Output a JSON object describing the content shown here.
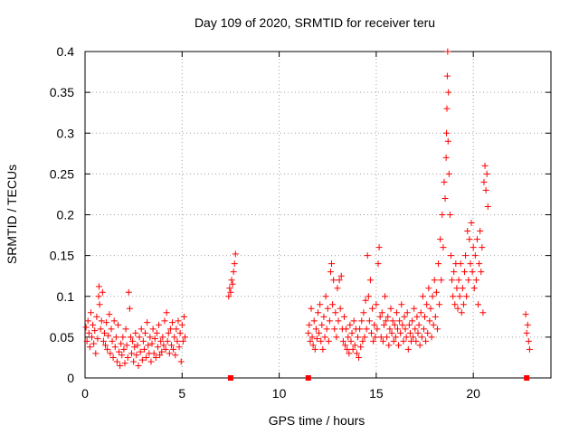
{
  "chart_data": {
    "type": "scatter",
    "title": "Day 109 of 2020, SRMTID for receiver teru",
    "xlabel": "GPS time / hours",
    "ylabel": "SRMTID / TECUs",
    "xlim": [
      0,
      24
    ],
    "ylim": [
      0,
      0.4
    ],
    "xticks": [
      0,
      5,
      10,
      15,
      20
    ],
    "xtick_labels": [
      "0",
      "5",
      "10",
      "15",
      "20"
    ],
    "yticks": [
      0,
      0.05,
      0.1,
      0.15,
      0.2,
      0.25,
      0.3,
      0.35,
      0.4
    ],
    "ytick_labels": [
      "0",
      "0.05",
      "0.1",
      "0.15",
      "0.2",
      "0.25",
      "0.3",
      "0.35",
      "0.4"
    ],
    "grid": true,
    "marker": "+",
    "color": "#ff0000",
    "series": [
      {
        "name": "SRMTID",
        "points": [
          [
            0.05,
            0.062
          ],
          [
            0.1,
            0.045
          ],
          [
            0.15,
            0.07
          ],
          [
            0.2,
            0.055
          ],
          [
            0.25,
            0.038
          ],
          [
            0.3,
            0.08
          ],
          [
            0.35,
            0.05
          ],
          [
            0.4,
            0.065
          ],
          [
            0.45,
            0.042
          ],
          [
            0.5,
            0.058
          ],
          [
            0.55,
            0.03
          ],
          [
            0.6,
            0.075
          ],
          [
            0.65,
            0.048
          ],
          [
            0.7,
            0.1
          ],
          [
            0.72,
            0.112
          ],
          [
            0.75,
            0.09
          ],
          [
            0.8,
            0.06
          ],
          [
            0.85,
            0.07
          ],
          [
            0.9,
            0.105
          ],
          [
            0.95,
            0.045
          ],
          [
            1.0,
            0.055
          ],
          [
            1.05,
            0.04
          ],
          [
            1.1,
            0.068
          ],
          [
            1.15,
            0.035
          ],
          [
            1.2,
            0.052
          ],
          [
            1.25,
            0.078
          ],
          [
            1.3,
            0.03
          ],
          [
            1.35,
            0.06
          ],
          [
            1.4,
            0.045
          ],
          [
            1.45,
            0.025
          ],
          [
            1.5,
            0.07
          ],
          [
            1.55,
            0.038
          ],
          [
            1.6,
            0.05
          ],
          [
            1.65,
            0.02
          ],
          [
            1.7,
            0.065
          ],
          [
            1.75,
            0.032
          ],
          [
            1.8,
            0.015
          ],
          [
            1.85,
            0.042
          ],
          [
            1.9,
            0.028
          ],
          [
            1.95,
            0.05
          ],
          [
            2.0,
            0.035
          ],
          [
            2.05,
            0.018
          ],
          [
            2.1,
            0.06
          ],
          [
            2.15,
            0.04
          ],
          [
            2.2,
            0.025
          ],
          [
            2.25,
            0.105
          ],
          [
            2.3,
            0.085
          ],
          [
            2.35,
            0.05
          ],
          [
            2.4,
            0.03
          ],
          [
            2.45,
            0.045
          ],
          [
            2.5,
            0.02
          ],
          [
            2.55,
            0.038
          ],
          [
            2.6,
            0.055
          ],
          [
            2.65,
            0.028
          ],
          [
            2.7,
            0.04
          ],
          [
            2.75,
            0.015
          ],
          [
            2.8,
            0.05
          ],
          [
            2.85,
            0.032
          ],
          [
            2.9,
            0.06
          ],
          [
            2.95,
            0.022
          ],
          [
            3.0,
            0.045
          ],
          [
            3.05,
            0.035
          ],
          [
            3.1,
            0.055
          ],
          [
            3.15,
            0.025
          ],
          [
            3.2,
            0.068
          ],
          [
            3.25,
            0.04
          ],
          [
            3.3,
            0.03
          ],
          [
            3.35,
            0.05
          ],
          [
            3.4,
            0.02
          ],
          [
            3.45,
            0.042
          ],
          [
            3.5,
            0.06
          ],
          [
            3.55,
            0.03
          ],
          [
            3.6,
            0.048
          ],
          [
            3.65,
            0.025
          ],
          [
            3.7,
            0.055
          ],
          [
            3.75,
            0.038
          ],
          [
            3.8,
            0.065
          ],
          [
            3.85,
            0.028
          ],
          [
            3.9,
            0.045
          ],
          [
            3.95,
            0.032
          ],
          [
            4.0,
            0.05
          ],
          [
            4.05,
            0.04
          ],
          [
            4.1,
            0.07
          ],
          [
            4.15,
            0.035
          ],
          [
            4.2,
            0.08
          ],
          [
            4.25,
            0.045
          ],
          [
            4.3,
            0.055
          ],
          [
            4.35,
            0.03
          ],
          [
            4.4,
            0.06
          ],
          [
            4.45,
            0.04
          ],
          [
            4.5,
            0.068
          ],
          [
            4.55,
            0.035
          ],
          [
            4.6,
            0.05
          ],
          [
            4.65,
            0.028
          ],
          [
            4.7,
            0.06
          ],
          [
            4.75,
            0.045
          ],
          [
            4.8,
            0.07
          ],
          [
            4.85,
            0.038
          ],
          [
            4.9,
            0.055
          ],
          [
            4.95,
            0.02
          ],
          [
            5.0,
            0.065
          ],
          [
            5.05,
            0.045
          ],
          [
            5.1,
            0.075
          ],
          [
            5.15,
            0.05
          ],
          [
            7.4,
            0.1
          ],
          [
            7.45,
            0.11
          ],
          [
            7.5,
            0.105
          ],
          [
            7.55,
            0.12
          ],
          [
            7.6,
            0.115
          ],
          [
            7.65,
            0.13
          ],
          [
            7.7,
            0.14
          ],
          [
            7.75,
            0.152
          ],
          [
            11.5,
            0.055
          ],
          [
            11.55,
            0.065
          ],
          [
            11.6,
            0.045
          ],
          [
            11.65,
            0.085
          ],
          [
            11.7,
            0.05
          ],
          [
            11.75,
            0.04
          ],
          [
            11.8,
            0.07
          ],
          [
            11.85,
            0.035
          ],
          [
            11.9,
            0.06
          ],
          [
            11.95,
            0.048
          ],
          [
            12.0,
            0.08
          ],
          [
            12.05,
            0.055
          ],
          [
            12.1,
            0.09
          ],
          [
            12.15,
            0.045
          ],
          [
            12.2,
            0.065
          ],
          [
            12.25,
            0.035
          ],
          [
            12.3,
            0.075
          ],
          [
            12.35,
            0.05
          ],
          [
            12.4,
            0.1
          ],
          [
            12.45,
            0.06
          ],
          [
            12.5,
            0.085
          ],
          [
            12.55,
            0.045
          ],
          [
            12.6,
            0.07
          ],
          [
            12.65,
            0.13
          ],
          [
            12.7,
            0.14
          ],
          [
            12.75,
            0.09
          ],
          [
            12.8,
            0.12
          ],
          [
            12.85,
            0.06
          ],
          [
            12.9,
            0.08
          ],
          [
            12.95,
            0.05
          ],
          [
            13.0,
            0.11
          ],
          [
            13.05,
            0.07
          ],
          [
            13.1,
            0.12
          ],
          [
            13.15,
            0.085
          ],
          [
            13.2,
            0.125
          ],
          [
            13.25,
            0.06
          ],
          [
            13.3,
            0.045
          ],
          [
            13.35,
            0.075
          ],
          [
            13.4,
            0.04
          ],
          [
            13.45,
            0.06
          ],
          [
            13.5,
            0.035
          ],
          [
            13.55,
            0.05
          ],
          [
            13.6,
            0.03
          ],
          [
            13.65,
            0.065
          ],
          [
            13.7,
            0.045
          ],
          [
            13.75,
            0.055
          ],
          [
            13.8,
            0.035
          ],
          [
            13.85,
            0.07
          ],
          [
            13.9,
            0.04
          ],
          [
            13.95,
            0.06
          ],
          [
            14.0,
            0.03
          ],
          [
            14.05,
            0.05
          ],
          [
            14.1,
            0.025
          ],
          [
            14.15,
            0.06
          ],
          [
            14.2,
            0.038
          ],
          [
            14.25,
            0.07
          ],
          [
            14.3,
            0.045
          ],
          [
            14.35,
            0.08
          ],
          [
            14.4,
            0.05
          ],
          [
            14.45,
            0.095
          ],
          [
            14.5,
            0.06
          ],
          [
            14.55,
            0.15
          ],
          [
            14.6,
            0.1
          ],
          [
            14.65,
            0.07
          ],
          [
            14.7,
            0.12
          ],
          [
            14.75,
            0.055
          ],
          [
            14.8,
            0.085
          ],
          [
            14.85,
            0.045
          ],
          [
            14.9,
            0.065
          ],
          [
            14.95,
            0.05
          ],
          [
            15.0,
            0.09
          ],
          [
            15.05,
            0.06
          ],
          [
            15.1,
            0.14
          ],
          [
            15.15,
            0.16
          ],
          [
            15.2,
            0.075
          ],
          [
            15.25,
            0.05
          ],
          [
            15.3,
            0.08
          ],
          [
            15.35,
            0.045
          ],
          [
            15.4,
            0.065
          ],
          [
            15.45,
            0.1
          ],
          [
            15.5,
            0.07
          ],
          [
            15.55,
            0.05
          ],
          [
            15.6,
            0.075
          ],
          [
            15.65,
            0.04
          ],
          [
            15.7,
            0.06
          ],
          [
            15.75,
            0.085
          ],
          [
            15.8,
            0.055
          ],
          [
            15.85,
            0.07
          ],
          [
            15.9,
            0.045
          ],
          [
            15.95,
            0.065
          ],
          [
            16.0,
            0.05
          ],
          [
            16.05,
            0.08
          ],
          [
            16.1,
            0.06
          ],
          [
            16.15,
            0.04
          ],
          [
            16.2,
            0.07
          ],
          [
            16.25,
            0.055
          ],
          [
            16.3,
            0.09
          ],
          [
            16.35,
            0.065
          ],
          [
            16.4,
            0.045
          ],
          [
            16.45,
            0.075
          ],
          [
            16.5,
            0.06
          ],
          [
            16.55,
            0.05
          ],
          [
            16.6,
            0.08
          ],
          [
            16.65,
            0.035
          ],
          [
            16.7,
            0.065
          ],
          [
            16.75,
            0.055
          ],
          [
            16.8,
            0.045
          ],
          [
            16.85,
            0.07
          ],
          [
            16.9,
            0.05
          ],
          [
            16.95,
            0.085
          ],
          [
            17.0,
            0.06
          ],
          [
            17.05,
            0.045
          ],
          [
            17.1,
            0.075
          ],
          [
            17.15,
            0.055
          ],
          [
            17.2,
            0.065
          ],
          [
            17.25,
            0.04
          ],
          [
            17.3,
            0.08
          ],
          [
            17.35,
            0.05
          ],
          [
            17.4,
            0.1
          ],
          [
            17.45,
            0.06
          ],
          [
            17.5,
            0.075
          ],
          [
            17.55,
            0.045
          ],
          [
            17.6,
            0.09
          ],
          [
            17.65,
            0.055
          ],
          [
            17.7,
            0.11
          ],
          [
            17.75,
            0.07
          ],
          [
            17.8,
            0.085
          ],
          [
            17.85,
            0.05
          ],
          [
            17.9,
            0.1
          ],
          [
            17.95,
            0.065
          ],
          [
            18.0,
            0.12
          ],
          [
            18.05,
            0.075
          ],
          [
            18.1,
            0.105
          ],
          [
            18.15,
            0.06
          ],
          [
            18.2,
            0.14
          ],
          [
            18.25,
            0.09
          ],
          [
            18.3,
            0.17
          ],
          [
            18.35,
            0.12
          ],
          [
            18.4,
            0.2
          ],
          [
            18.45,
            0.16
          ],
          [
            18.5,
            0.24
          ],
          [
            18.55,
            0.22
          ],
          [
            18.6,
            0.27
          ],
          [
            18.62,
            0.3
          ],
          [
            18.64,
            0.33
          ],
          [
            18.66,
            0.37
          ],
          [
            18.68,
            0.4
          ],
          [
            18.7,
            0.29
          ],
          [
            18.72,
            0.35
          ],
          [
            18.75,
            0.25
          ],
          [
            18.8,
            0.2
          ],
          [
            18.85,
            0.15
          ],
          [
            18.9,
            0.12
          ],
          [
            18.95,
            0.1
          ],
          [
            19.0,
            0.13
          ],
          [
            19.05,
            0.09
          ],
          [
            19.1,
            0.14
          ],
          [
            19.15,
            0.11
          ],
          [
            19.2,
            0.085
          ],
          [
            19.25,
            0.12
          ],
          [
            19.3,
            0.1
          ],
          [
            19.35,
            0.14
          ],
          [
            19.4,
            0.08
          ],
          [
            19.45,
            0.11
          ],
          [
            19.5,
            0.09
          ],
          [
            19.55,
            0.13
          ],
          [
            19.6,
            0.15
          ],
          [
            19.65,
            0.1
          ],
          [
            19.7,
            0.18
          ],
          [
            19.75,
            0.12
          ],
          [
            19.8,
            0.17
          ],
          [
            19.85,
            0.14
          ],
          [
            19.9,
            0.19
          ],
          [
            19.95,
            0.13
          ],
          [
            20.0,
            0.16
          ],
          [
            20.05,
            0.11
          ],
          [
            20.1,
            0.15
          ],
          [
            20.15,
            0.12
          ],
          [
            20.2,
            0.17
          ],
          [
            20.25,
            0.09
          ],
          [
            20.3,
            0.14
          ],
          [
            20.35,
            0.18
          ],
          [
            20.4,
            0.13
          ],
          [
            20.45,
            0.16
          ],
          [
            20.5,
            0.08
          ],
          [
            20.55,
            0.24
          ],
          [
            20.6,
            0.26
          ],
          [
            20.65,
            0.23
          ],
          [
            20.7,
            0.25
          ],
          [
            20.75,
            0.21
          ],
          [
            22.7,
            0.078
          ],
          [
            22.75,
            0.055
          ],
          [
            22.8,
            0.065
          ],
          [
            22.85,
            0.045
          ],
          [
            22.9,
            0.035
          ]
        ]
      }
    ],
    "zero_points": [
      7.5,
      11.5,
      22.75
    ]
  }
}
